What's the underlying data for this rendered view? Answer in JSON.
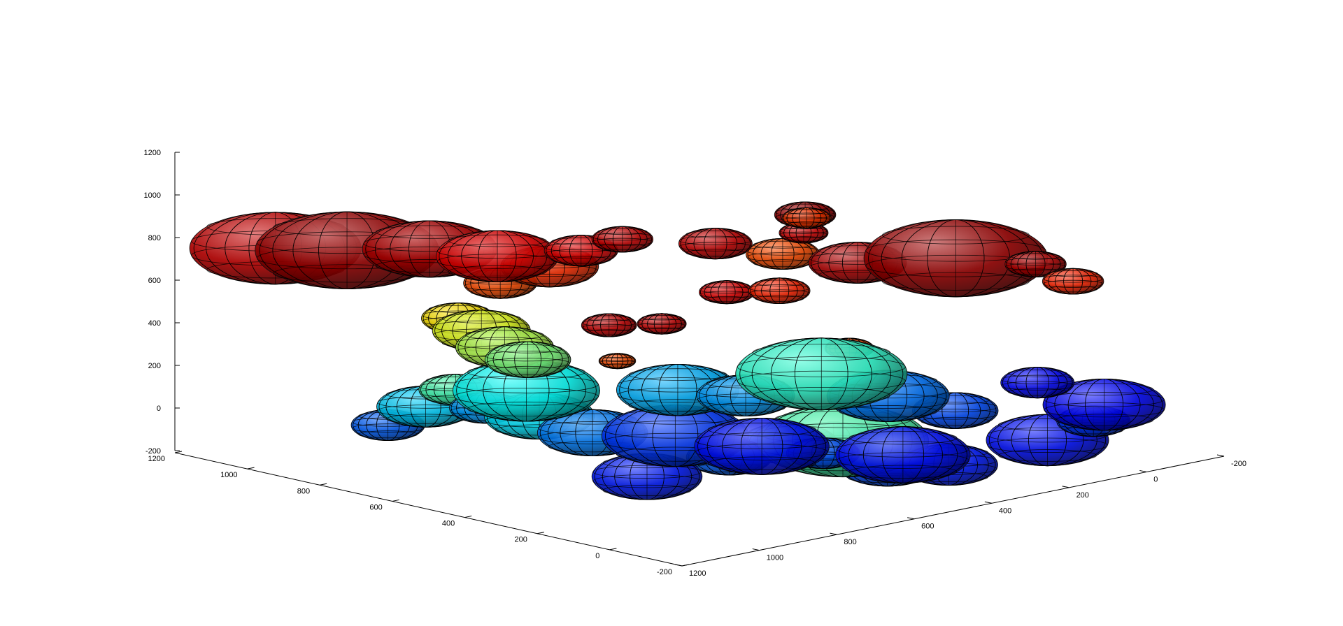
{
  "chart_data": {
    "type": "3d-ellipsoid-scatter",
    "title": "",
    "xlabel": "",
    "ylabel": "",
    "zlabel": "",
    "grid": false,
    "legend": "none",
    "colormap": "jet",
    "xlim": [
      -200,
      1200
    ],
    "ylim": [
      -200,
      1200
    ],
    "zlim": [
      -200,
      1200
    ],
    "x_ticks": [
      "-200",
      "0",
      "200",
      "400",
      "600",
      "800",
      "1000",
      "1200"
    ],
    "y_ticks": [
      "-200",
      "0",
      "200",
      "400",
      "600",
      "800",
      "1000",
      "1200"
    ],
    "z_ticks": [
      "-200",
      "0",
      "200",
      "400",
      "600",
      "800",
      "1000",
      "1200"
    ],
    "blobs": [
      {
        "x": 1090,
        "y": 1040,
        "z": 780,
        "r": 140,
        "c": 0.93
      },
      {
        "x": 980,
        "y": 960,
        "z": 760,
        "r": 150,
        "c": 0.97
      },
      {
        "x": 860,
        "y": 860,
        "z": 760,
        "r": 110,
        "c": 0.95
      },
      {
        "x": 760,
        "y": 780,
        "z": 720,
        "r": 100,
        "c": 0.9
      },
      {
        "x": 700,
        "y": 700,
        "z": 680,
        "r": 80,
        "c": 0.83
      },
      {
        "x": 790,
        "y": 740,
        "z": 620,
        "r": 60,
        "c": 0.8
      },
      {
        "x": 600,
        "y": 720,
        "z": 710,
        "r": 60,
        "c": 0.9
      },
      {
        "x": 540,
        "y": 670,
        "z": 760,
        "r": 50,
        "c": 0.93
      },
      {
        "x": 440,
        "y": 520,
        "z": 760,
        "r": 60,
        "c": 0.93
      },
      {
        "x": 360,
        "y": 420,
        "z": 720,
        "r": 60,
        "c": 0.8
      },
      {
        "x": 260,
        "y": 320,
        "z": 680,
        "r": 80,
        "c": 0.95
      },
      {
        "x": 100,
        "y": 220,
        "z": 680,
        "r": 150,
        "c": 0.97
      },
      {
        "x": -50,
        "y": 160,
        "z": 620,
        "r": 50,
        "c": 0.95
      },
      {
        "x": -100,
        "y": 110,
        "z": 540,
        "r": 50,
        "c": 0.84
      },
      {
        "x": 560,
        "y": 540,
        "z": 420,
        "r": 40,
        "c": 0.93
      },
      {
        "x": 640,
        "y": 600,
        "z": 420,
        "r": 45,
        "c": 0.93
      },
      {
        "x": 600,
        "y": 620,
        "z": 230,
        "r": 30,
        "c": 0.8
      },
      {
        "x": 880,
        "y": 760,
        "z": 480,
        "r": 60,
        "c": 0.65
      },
      {
        "x": 820,
        "y": 760,
        "z": 400,
        "r": 80,
        "c": 0.6
      },
      {
        "x": 760,
        "y": 760,
        "z": 300,
        "r": 80,
        "c": 0.55
      },
      {
        "x": 700,
        "y": 760,
        "z": 220,
        "r": 70,
        "c": 0.5
      },
      {
        "x": 760,
        "y": 700,
        "z": 120,
        "r": 120,
        "c": 0.38
      },
      {
        "x": 500,
        "y": 560,
        "z": 80,
        "r": 100,
        "c": 0.3
      },
      {
        "x": 390,
        "y": 490,
        "z": 40,
        "r": 80,
        "c": 0.28
      },
      {
        "x": 260,
        "y": 420,
        "z": 120,
        "r": 140,
        "c": 0.42
      },
      {
        "x": 200,
        "y": 300,
        "z": 40,
        "r": 100,
        "c": 0.24
      },
      {
        "x": 120,
        "y": 200,
        "z": -20,
        "r": 70,
        "c": 0.2
      },
      {
        "x": 1080,
        "y": 740,
        "z": 60,
        "r": 60,
        "c": 0.22
      },
      {
        "x": 1020,
        "y": 700,
        "z": 140,
        "r": 80,
        "c": 0.33
      },
      {
        "x": 980,
        "y": 660,
        "z": 220,
        "r": 60,
        "c": 0.45
      },
      {
        "x": 920,
        "y": 640,
        "z": 120,
        "r": 60,
        "c": 0.28
      },
      {
        "x": 820,
        "y": 600,
        "z": 60,
        "r": 90,
        "c": 0.35
      },
      {
        "x": 720,
        "y": 560,
        "z": -40,
        "r": 90,
        "c": 0.25
      },
      {
        "x": 600,
        "y": 460,
        "z": -60,
        "r": 120,
        "c": 0.18
      },
      {
        "x": 470,
        "y": 360,
        "z": -120,
        "r": 110,
        "c": 0.14
      },
      {
        "x": 330,
        "y": 120,
        "z": -120,
        "r": 110,
        "c": 0.14
      },
      {
        "x": 480,
        "y": 180,
        "z": -80,
        "r": 60,
        "c": 0.2
      },
      {
        "x": 860,
        "y": 260,
        "z": -80,
        "r": 90,
        "c": 0.15
      },
      {
        "x": 760,
        "y": 140,
        "z": 20,
        "r": 70,
        "c": 0.22
      },
      {
        "x": 560,
        "y": 40,
        "z": 60,
        "r": 140,
        "c": 0.45
      },
      {
        "x": 640,
        "y": -20,
        "z": 80,
        "r": 100,
        "c": 0.35
      },
      {
        "x": 700,
        "y": 40,
        "z": 100,
        "r": 80,
        "c": 0.3
      },
      {
        "x": 520,
        "y": -40,
        "z": -40,
        "r": 80,
        "c": 0.2
      },
      {
        "x": 380,
        "y": -60,
        "z": -80,
        "r": 80,
        "c": 0.15
      },
      {
        "x": 200,
        "y": -140,
        "z": 0,
        "r": 100,
        "c": 0.14
      },
      {
        "x": 100,
        "y": -160,
        "z": 60,
        "r": 60,
        "c": 0.18
      },
      {
        "x": -40,
        "y": -40,
        "z": 40,
        "r": 100,
        "c": 0.13
      },
      {
        "x": 20,
        "y": 80,
        "z": 120,
        "r": 60,
        "c": 0.13
      },
      {
        "x": 300,
        "y": 300,
        "z": 300,
        "r": 40,
        "c": 0.8
      },
      {
        "x": 200,
        "y": 600,
        "z": 420,
        "r": 50,
        "c": 0.84
      },
      {
        "x": 280,
        "y": 660,
        "z": 420,
        "r": 45,
        "c": 0.9
      },
      {
        "x": 100,
        "y": 640,
        "z": 640,
        "r": 40,
        "c": 0.92
      },
      {
        "x": 40,
        "y": 700,
        "z": 680,
        "r": 50,
        "c": 0.97
      },
      {
        "x": -20,
        "y": 760,
        "z": 620,
        "r": 40,
        "c": 0.82
      }
    ]
  }
}
